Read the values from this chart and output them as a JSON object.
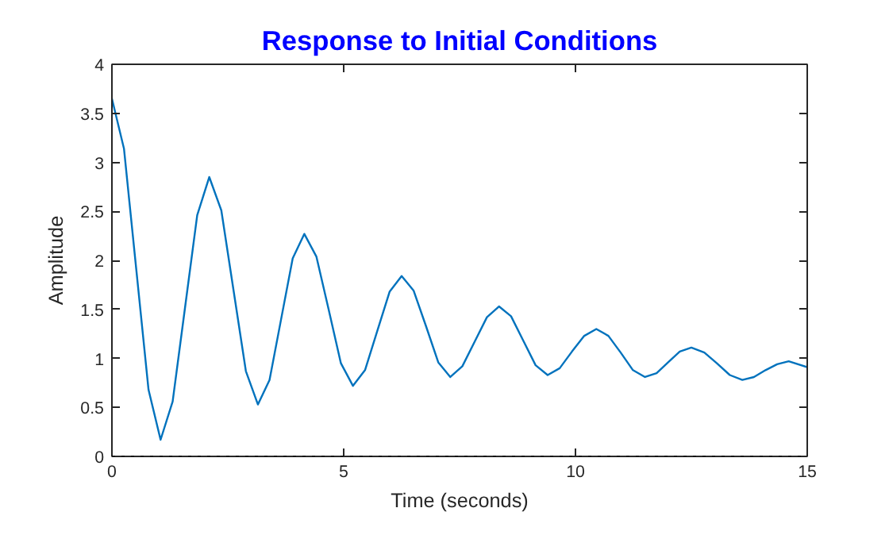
{
  "chart_data": {
    "type": "line",
    "title": "Response to Initial Conditions",
    "xlabel": "Time (seconds)",
    "ylabel": "Amplitude",
    "xlim": [
      0,
      15
    ],
    "ylim": [
      0,
      4
    ],
    "xticks": [
      0,
      5,
      10,
      15
    ],
    "yticks": [
      0,
      0.5,
      1,
      1.5,
      2,
      2.5,
      3,
      3.5,
      4
    ],
    "grid": false,
    "ref_lines": [
      {
        "axis": "y",
        "value": 0,
        "color": "#000000",
        "line_style": "dotted"
      }
    ],
    "series": [
      {
        "color": "#0072bd",
        "x": [
          0,
          0.26,
          0.525,
          0.79,
          1.05,
          1.31,
          1.575,
          1.84,
          2.1,
          2.36,
          2.625,
          2.89,
          3.15,
          3.4,
          3.65,
          3.9,
          4.15,
          4.41,
          4.675,
          4.94,
          5.2,
          5.46,
          5.725,
          5.99,
          6.25,
          6.51,
          6.775,
          7.04,
          7.3,
          7.56,
          7.825,
          8.09,
          8.35,
          8.61,
          8.875,
          9.14,
          9.4,
          9.66,
          9.925,
          10.19,
          10.45,
          10.71,
          10.975,
          11.24,
          11.5,
          11.75,
          12.0,
          12.25,
          12.5,
          12.78,
          13.05,
          13.33,
          13.6,
          13.85,
          14.1,
          14.35,
          14.6,
          15
        ],
        "values": [
          3.65,
          3.14,
          1.91,
          0.68,
          0.17,
          0.56,
          1.51,
          2.46,
          2.85,
          2.51,
          1.69,
          0.87,
          0.53,
          0.78,
          1.4,
          2.02,
          2.27,
          2.04,
          1.5,
          0.95,
          0.72,
          0.88,
          1.28,
          1.68,
          1.84,
          1.69,
          1.33,
          0.96,
          0.81,
          0.92,
          1.17,
          1.42,
          1.53,
          1.43,
          1.18,
          0.93,
          0.83,
          0.9,
          1.07,
          1.23,
          1.3,
          1.23,
          1.06,
          0.88,
          0.81,
          0.85,
          0.96,
          1.07,
          1.11,
          1.06,
          0.95,
          0.83,
          0.78,
          0.81,
          0.88,
          0.94,
          0.97,
          0.91
        ]
      }
    ]
  }
}
